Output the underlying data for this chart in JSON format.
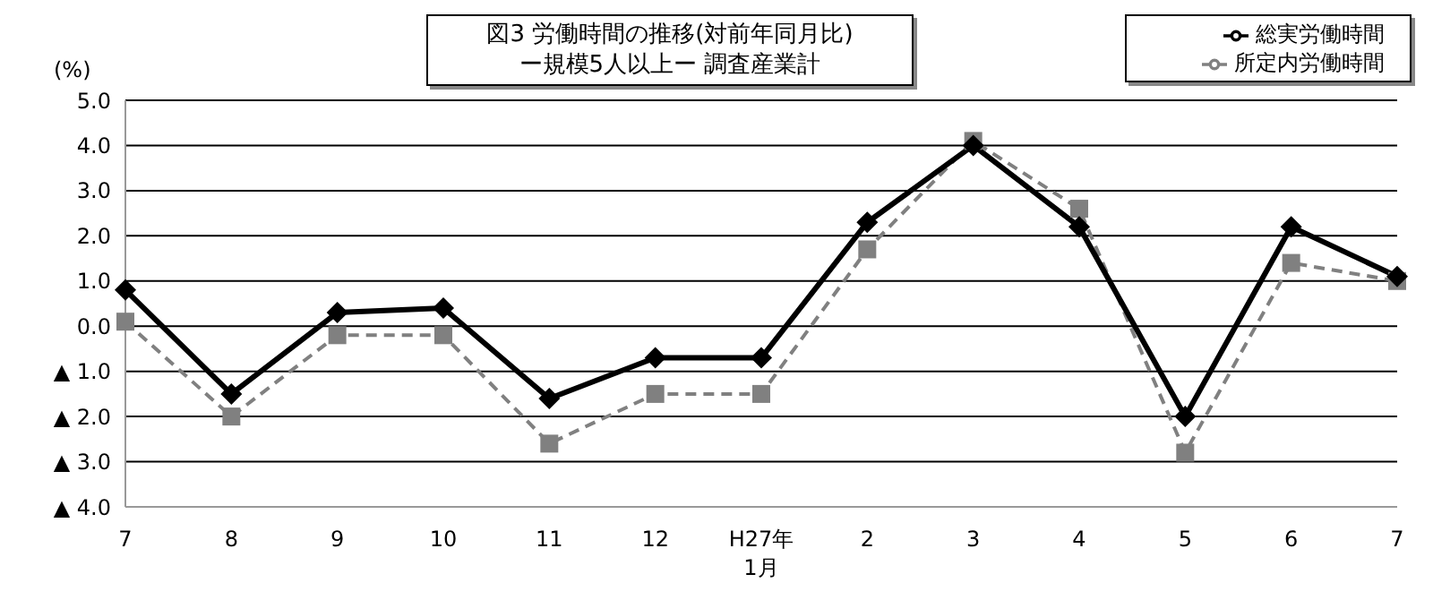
{
  "chart_data": {
    "type": "line",
    "title": "図3 労働時間の推移(対前年同月比)",
    "subtitle": "ー規模5人以上ー 調査産業計",
    "ylabel": "(%)",
    "categories": [
      "7",
      "8",
      "9",
      "10",
      "11",
      "12",
      "H27年\n1月",
      "2",
      "3",
      "4",
      "5",
      "6",
      "7"
    ],
    "series": [
      {
        "name": "総実労働時間",
        "color": "#000000",
        "marker": "diamond",
        "line_style": "solid",
        "values": [
          0.8,
          -1.5,
          0.3,
          0.4,
          -1.6,
          -0.7,
          -0.7,
          2.3,
          4.0,
          2.2,
          -2.0,
          2.2,
          1.1
        ]
      },
      {
        "name": "所定内労働時間",
        "color": "#808080",
        "marker": "square",
        "line_style": "dashed",
        "values": [
          0.1,
          -2.0,
          -0.2,
          -0.2,
          -2.6,
          -1.5,
          -1.5,
          1.7,
          4.1,
          2.6,
          -2.8,
          1.4,
          1.0
        ]
      }
    ],
    "ylim": [
      -4,
      5
    ],
    "yticks": [
      {
        "value": -4,
        "label": "▲ 4.0"
      },
      {
        "value": -3,
        "label": "▲ 3.0"
      },
      {
        "value": -2,
        "label": "▲ 2.0"
      },
      {
        "value": -1,
        "label": "▲ 1.0"
      },
      {
        "value": 0,
        "label": "0.0"
      },
      {
        "value": 1,
        "label": "1.0"
      },
      {
        "value": 2,
        "label": "2.0"
      },
      {
        "value": 3,
        "label": "3.0"
      },
      {
        "value": 4,
        "label": "4.0"
      },
      {
        "value": 5,
        "label": "5.0"
      }
    ],
    "grid": "y",
    "legend": "top right"
  }
}
